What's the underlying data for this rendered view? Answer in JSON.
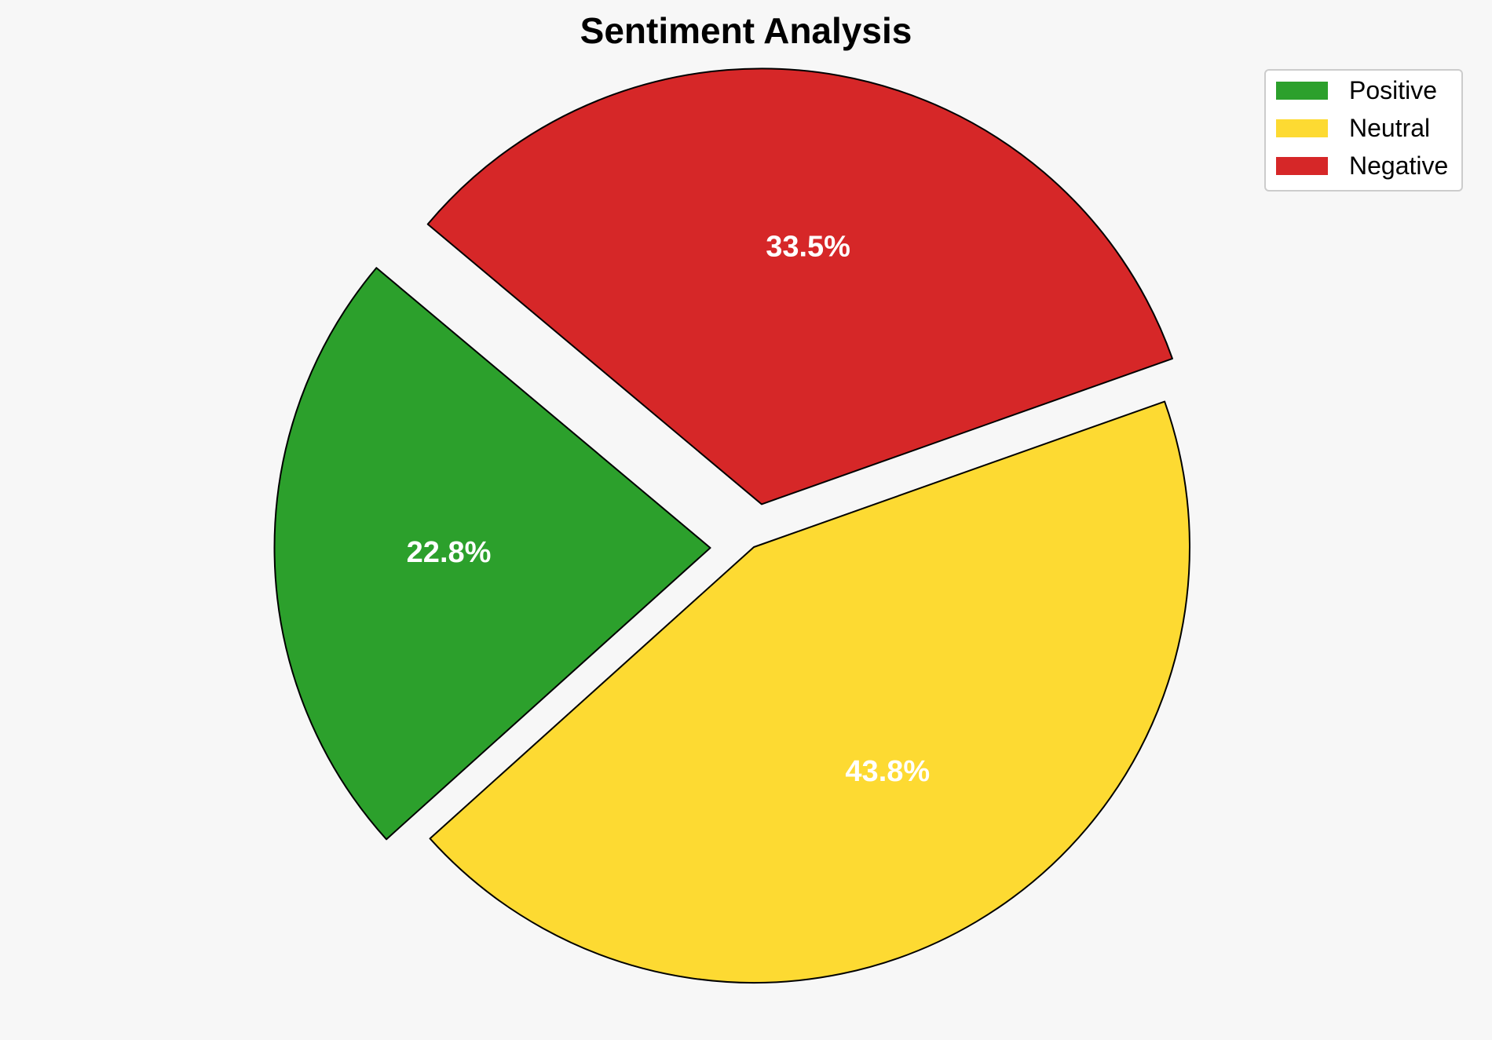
{
  "chart_data": {
    "type": "pie",
    "title": "Sentiment Analysis",
    "categories": [
      "Positive",
      "Neutral",
      "Negative"
    ],
    "values": [
      22.8,
      43.8,
      33.5
    ],
    "labels": [
      "22.8%",
      "43.8%",
      "33.5%"
    ],
    "colors": [
      "#2ca02c",
      "#fdda32",
      "#d62728"
    ],
    "exploded": [
      true,
      false,
      true
    ],
    "start_angle_deg": 140,
    "direction": "counterclockwise",
    "edge_color": "#000000",
    "label_color": "#ffffff",
    "legend": {
      "position": "top-right",
      "entries": [
        "Positive",
        "Neutral",
        "Negative"
      ]
    }
  }
}
